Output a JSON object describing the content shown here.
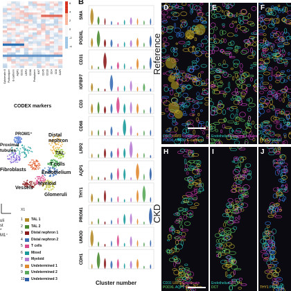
{
  "panel_b_letter": "B",
  "heatmap": {
    "xlabel": "CODEX markers",
    "x_ticks": [
      "Cytokeratin 8",
      "Podocalyxin",
      "E-cadherin",
      "AQP1",
      "CD31",
      "LRP2",
      "CD68",
      "Podoplanin",
      "Ki67",
      "CD45",
      "CD20",
      "CD4",
      "CD8",
      "DAPI"
    ],
    "colorbar_ticks": [
      "6",
      "4",
      "2",
      "0",
      "-2",
      "-4"
    ]
  },
  "umap": {
    "xlabel": "X1",
    "labels": [
      "PROM1⁺",
      "Distal\nnephron",
      "TAL",
      "T cells",
      "Endothelium",
      "Proximal\ntubules",
      "Fibroblasts",
      "Myeloid",
      "Vessels",
      "Glomeruli"
    ]
  },
  "legend": {
    "items": [
      {
        "num": "1",
        "label": "TAL 1",
        "color": "#b58b2a"
      },
      {
        "num": "2",
        "label": "TAL 2",
        "color": "#4a8a2f"
      },
      {
        "num": "3",
        "label": "Distal nephron 1",
        "color": "#8a1b1b"
      },
      {
        "num": "4",
        "label": "Distal nephron 2",
        "color": "#3b6fb6"
      },
      {
        "num": "5",
        "label": "T cells",
        "color": "#d94a8c"
      },
      {
        "num": "6",
        "label": "Mixed",
        "color": "#1a9a9a"
      },
      {
        "num": "7",
        "label": "Myeloid",
        "color": "#b77bd1"
      },
      {
        "num": "8",
        "label": "Undetermined 1",
        "color": "#e08a2f"
      },
      {
        "num": "9",
        "label": "Undetermined 2",
        "color": "#5aa85a"
      },
      {
        "num": "10",
        "label": "Undetermined 3",
        "color": "#2f5fa8"
      }
    ],
    "left_fragments": [
      "uli",
      "st",
      "",
      "*",
      "",
      "M1⁺"
    ]
  },
  "violin": {
    "xlabel": "Cluster number",
    "markers": [
      "SMA",
      "PODXL",
      "CD31",
      "IGFBP7",
      "CD3",
      "CD68",
      "LRP2",
      "AQP1",
      "THY1",
      "PROM1",
      "UMOD",
      "CDH1"
    ]
  },
  "rows": {
    "reference": "Reference",
    "ckd": "CKD"
  },
  "micro": [
    {
      "letter": "D",
      "legend": [
        "CD31",
        "LRP2",
        "Cytokeratin",
        "PODXL",
        "UMOD",
        "E-cadherin"
      ]
    },
    {
      "letter": "E",
      "legend": [
        "Endothelium",
        "Proximal tubules",
        "TAL",
        "Distal"
      ]
    },
    {
      "letter": "F",
      "legend": [
        "THY1",
        "PROM1"
      ]
    },
    {
      "letter": "H",
      "legend": [
        "CD31",
        "LRP2",
        "Cytokeratin",
        "PODXL",
        "AQP1",
        "E-cadherin"
      ]
    },
    {
      "letter": "I",
      "legend": [
        "Endothelium",
        "PT",
        "TAL",
        "DCT"
      ]
    },
    {
      "letter": "J",
      "legend": [
        "THY1",
        "PROM1"
      ]
    }
  ],
  "colors": {
    "heatmap_high": "#d6301c",
    "heatmap_low": "#2b6fb3",
    "micro_bg": "#0a0a10"
  }
}
